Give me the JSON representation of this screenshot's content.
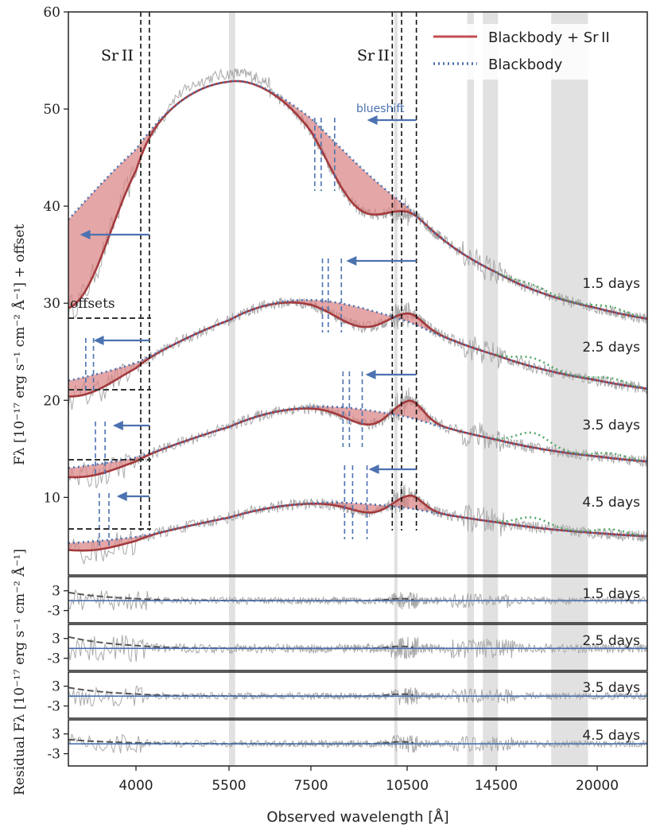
{
  "chart_data": {
    "type": "line",
    "y_label": "Fλ [10⁻¹⁷ erg s⁻¹ cm⁻² Å⁻¹] + offset",
    "y_label_lower": "[10⁻¹⁷ erg s⁻¹ cm⁻² Å⁻¹]",
    "y_label_main": "Fλ [10⁻¹⁷ erg s⁻¹ cm⁻² Å⁻¹] + offset",
    "x_label": "Observed wavelength [Å]",
    "residual_label": "Residual Fλ [10⁻¹⁷ erg s⁻¹ cm⁻² Å⁻¹]",
    "main_ylim": [
      2,
      60
    ],
    "main_yticks": [
      "10",
      "20",
      "30",
      "40",
      "50",
      "60"
    ],
    "main_ytick_values": [
      10,
      20,
      30,
      40,
      50,
      60
    ],
    "x_ticks": [
      "4000",
      "5500",
      "7500",
      "10500",
      "14500",
      "20000"
    ],
    "x_tick_values": [
      4000,
      5500,
      7500,
      10500,
      14500,
      20000
    ],
    "x_range": [
      3300,
      23500
    ],
    "legend": [
      {
        "label": "Blackbody + Sr II",
        "color": "#c44e52",
        "style": "solid"
      },
      {
        "label": "Blackbody",
        "color": "#4c72b0",
        "style": "dotted"
      }
    ],
    "annotations": {
      "sr_label_left": "Sr II",
      "sr_label_right": "Sr II",
      "blueshift": "blueshift",
      "offsets": "offsets"
    },
    "sr_lines": [
      4077,
      4216,
      10037,
      10327,
      10915
    ],
    "telluric_bands": [
      [
        5500,
        5650
      ],
      [
        10100,
        10200
      ],
      [
        13200,
        13500
      ],
      [
        13900,
        14600
      ],
      [
        17500,
        19500
      ]
    ],
    "epochs": [
      {
        "label": "1.5 days",
        "offset": 28.5,
        "bb_peak": 53.0,
        "end_value": 28.4
      },
      {
        "label": "2.5 days",
        "offset": 21.0,
        "bb_peak": 30.5,
        "end_value": 21.2
      },
      {
        "label": "3.5 days",
        "offset": 12.5,
        "bb_peak": 19.3,
        "end_value": 13.7
      },
      {
        "label": "4.5 days",
        "offset": 5.0,
        "bb_peak": 9.4,
        "end_value": 6.0
      }
    ],
    "residual_panels": [
      {
        "label": "1.5 days",
        "yticks": [
          "3",
          "-3"
        ],
        "ytick_values": [
          3,
          -3
        ]
      },
      {
        "label": "2.5 days",
        "yticks": [
          "3",
          "-3"
        ],
        "ytick_values": [
          3,
          -3
        ]
      },
      {
        "label": "3.5 days",
        "yticks": [
          "3",
          "-3"
        ],
        "ytick_values": [
          3,
          -3
        ]
      },
      {
        "label": "4.5 days",
        "yticks": [
          "3",
          "-3"
        ],
        "ytick_values": [
          3,
          -3
        ]
      }
    ],
    "colors": {
      "spectrum": "#a9a9a9",
      "model": "#c44e52",
      "blackbody": "#4c72b0",
      "fill": "#d98080",
      "green": "#55a868",
      "band": "#dcdcdc"
    }
  }
}
